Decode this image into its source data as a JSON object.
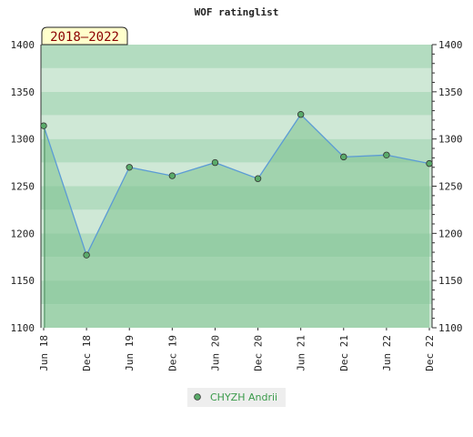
{
  "chart_data": {
    "type": "area",
    "title": "WOF ratinglist",
    "badge": "2018–2022",
    "x": [
      "Jun 18",
      "Dec 18",
      "Jun 19",
      "Dec 19",
      "Jun 20",
      "Dec 20",
      "Jun 21",
      "Dec 21",
      "Jun 22",
      "Dec 22"
    ],
    "series": [
      {
        "name": "CHYZH Andrii",
        "values": [
          1314,
          1177,
          1270,
          1261,
          1275,
          1258,
          1326,
          1281,
          1283,
          1274
        ]
      }
    ],
    "ylim": [
      1100,
      1400
    ],
    "yticks": [
      1100,
      1150,
      1200,
      1250,
      1300,
      1350,
      1400
    ],
    "grid": "horizontal bands",
    "legend": "bottom-center",
    "colors": {
      "line": "#5b9bd5",
      "fill": "#7cc18e",
      "marker": "#5aab6a",
      "band_strong": "#b3dcc0",
      "band_light": "#cfe8d6",
      "badge_bg": "#ffffcc"
    }
  }
}
